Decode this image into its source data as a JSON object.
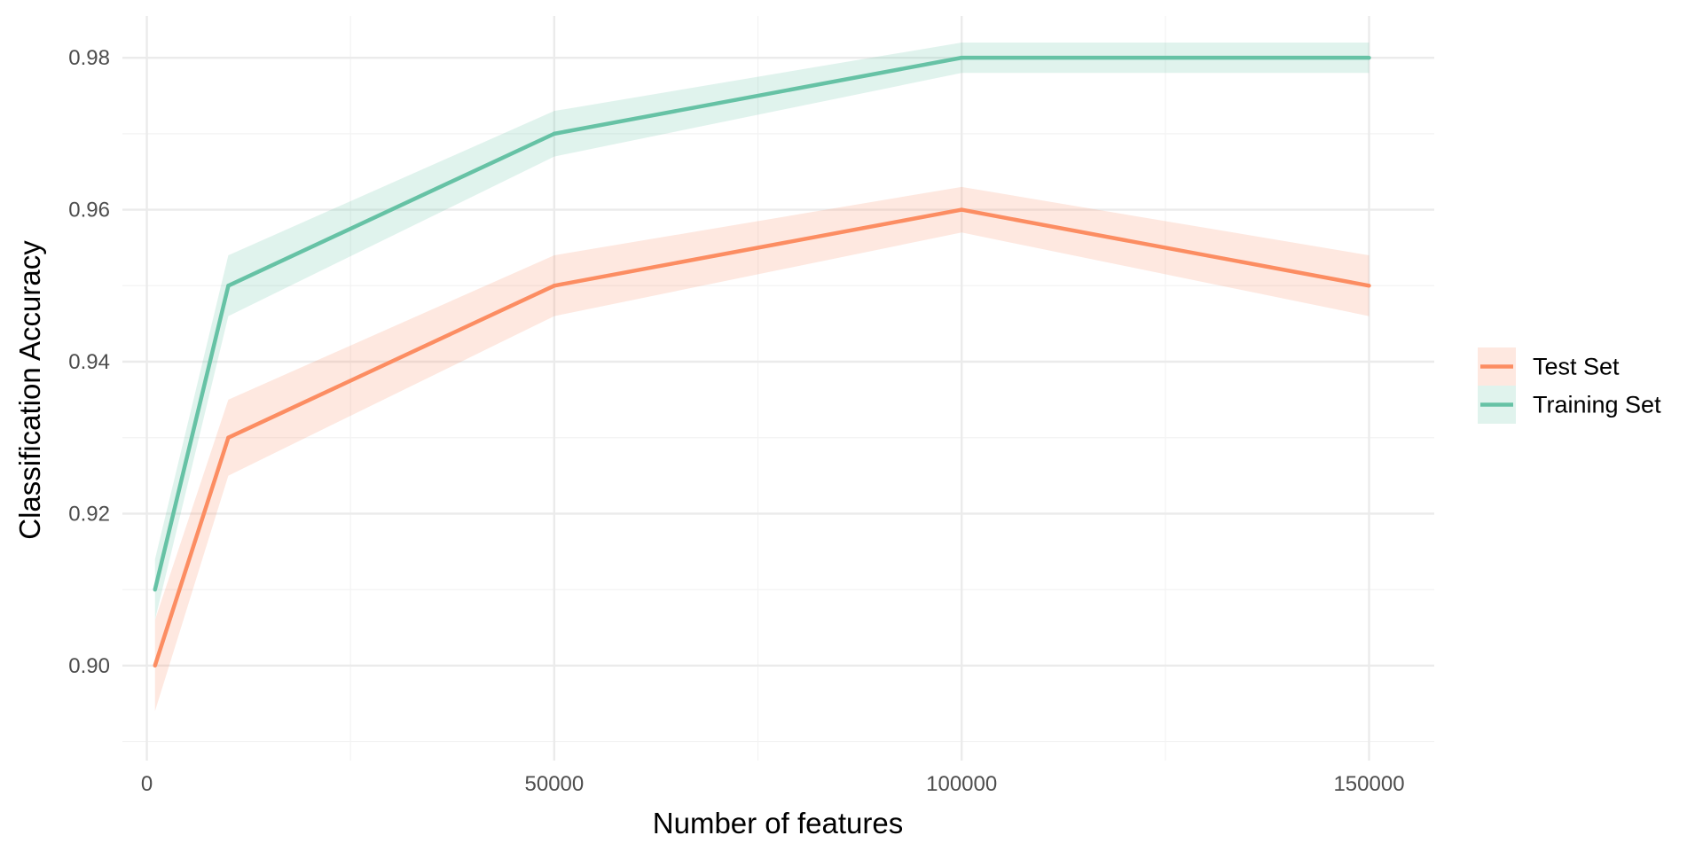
{
  "chart_data": {
    "type": "line",
    "title": "",
    "xlabel": "Number of features",
    "ylabel": "Classification Accuracy",
    "xlim": [
      -3000,
      158000
    ],
    "ylim": [
      0.8875,
      0.9855
    ],
    "x_ticks": [
      0,
      50000,
      100000,
      150000
    ],
    "y_ticks": [
      0.9,
      0.92,
      0.94,
      0.96,
      0.98
    ],
    "x_tick_labels": [
      "0",
      "50000",
      "100000",
      "150000"
    ],
    "y_tick_labels": [
      "0.90",
      "0.92",
      "0.94",
      "0.96",
      "0.98"
    ],
    "x_minor_ticks": [
      25000,
      75000,
      125000
    ],
    "y_minor_ticks": [
      0.89,
      0.91,
      0.93,
      0.95,
      0.97
    ],
    "grid": true,
    "legend_position": "right",
    "x": [
      1000,
      10000,
      50000,
      100000,
      150000
    ],
    "series": [
      {
        "name": "Test Set",
        "color": "#FC8D62",
        "values": [
          0.9,
          0.93,
          0.95,
          0.96,
          0.95
        ],
        "lower": [
          0.894,
          0.925,
          0.946,
          0.957,
          0.946
        ],
        "upper": [
          0.906,
          0.935,
          0.954,
          0.963,
          0.954
        ]
      },
      {
        "name": "Training Set",
        "color": "#66C2A5",
        "values": [
          0.91,
          0.95,
          0.97,
          0.98,
          0.98
        ],
        "lower": [
          0.906,
          0.946,
          0.967,
          0.978,
          0.978
        ],
        "upper": [
          0.914,
          0.954,
          0.973,
          0.982,
          0.982
        ]
      }
    ]
  }
}
